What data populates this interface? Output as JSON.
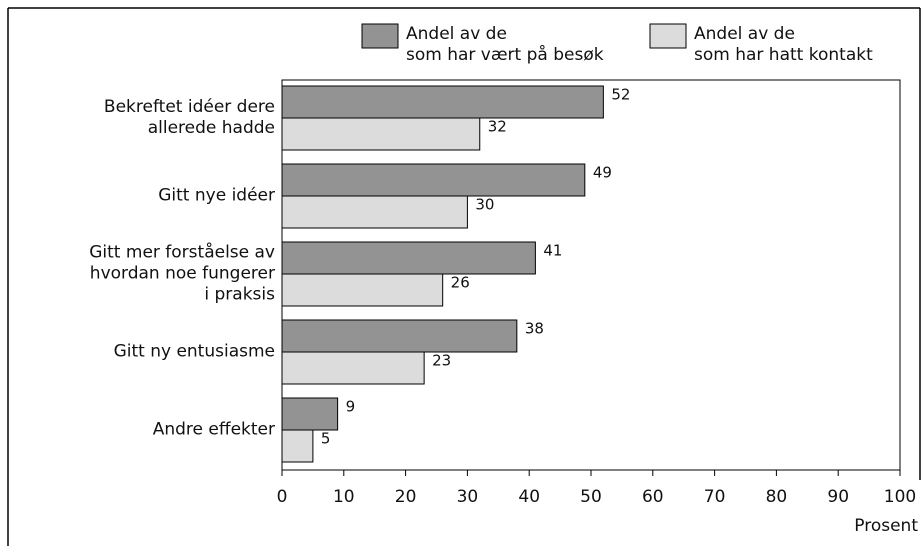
{
  "chart_data": {
    "type": "bar",
    "orientation": "horizontal",
    "categories": [
      "Bekreftet idéer dere\nallerede hadde",
      "Gitt nye idéer",
      "Gitt mer forståelse av\nhvordan noe fungerer\ni praksis",
      "Gitt ny entusiasme",
      "Andre effekter"
    ],
    "series": [
      {
        "name": "Andel av de\nsom har vært på besøk",
        "color": "#939393",
        "values": [
          52,
          49,
          41,
          38,
          9
        ]
      },
      {
        "name": "Andel av de\nsom har hatt kontakt",
        "color": "#dcdcdc",
        "values": [
          32,
          30,
          26,
          23,
          5
        ]
      }
    ],
    "xlabel": "Prosent",
    "xlim": [
      0,
      100
    ],
    "xticks": [
      0,
      10,
      20,
      30,
      40,
      50,
      60,
      70,
      80,
      90,
      100
    ],
    "grid": false
  }
}
